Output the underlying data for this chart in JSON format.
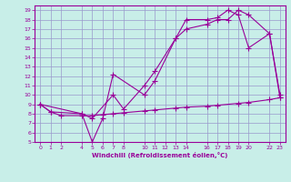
{
  "xlabel": "Windchill (Refroidissement éolien,°C)",
  "xlim": [
    -0.5,
    23.5
  ],
  "ylim": [
    5,
    19.5
  ],
  "xticks": [
    0,
    1,
    2,
    4,
    5,
    6,
    7,
    8,
    10,
    11,
    12,
    13,
    14,
    16,
    17,
    18,
    19,
    20,
    22,
    23
  ],
  "yticks": [
    5,
    6,
    7,
    8,
    9,
    10,
    11,
    12,
    13,
    14,
    15,
    16,
    17,
    18,
    19
  ],
  "bg_color": "#c8eee8",
  "line_color": "#990099",
  "grid_color": "#9999cc",
  "line1_x": [
    0,
    1,
    4,
    5,
    6,
    7,
    10,
    11,
    13,
    14,
    16,
    17,
    18,
    19,
    20,
    22,
    23
  ],
  "line1_y": [
    9,
    8.2,
    8.0,
    5.0,
    7.5,
    12.2,
    10.0,
    11.5,
    16.0,
    17.0,
    17.5,
    18.0,
    18.0,
    19.0,
    18.5,
    16.5,
    10.0
  ],
  "line2_x": [
    0,
    4,
    5,
    7,
    8,
    10,
    11,
    13,
    14,
    16,
    17,
    18,
    19,
    20,
    22,
    23
  ],
  "line2_y": [
    9,
    8.0,
    7.5,
    10.0,
    8.5,
    11.0,
    12.5,
    16.0,
    18.0,
    18.0,
    18.2,
    19.0,
    18.5,
    15.0,
    16.5,
    9.7
  ],
  "line3_x": [
    0,
    1,
    2,
    4,
    5,
    6,
    7,
    8,
    10,
    11,
    13,
    14,
    16,
    17,
    19,
    20,
    22,
    23
  ],
  "line3_y": [
    9,
    8.2,
    7.8,
    7.8,
    7.8,
    7.9,
    8.0,
    8.1,
    8.3,
    8.4,
    8.6,
    8.7,
    8.8,
    8.9,
    9.1,
    9.2,
    9.5,
    9.7
  ]
}
